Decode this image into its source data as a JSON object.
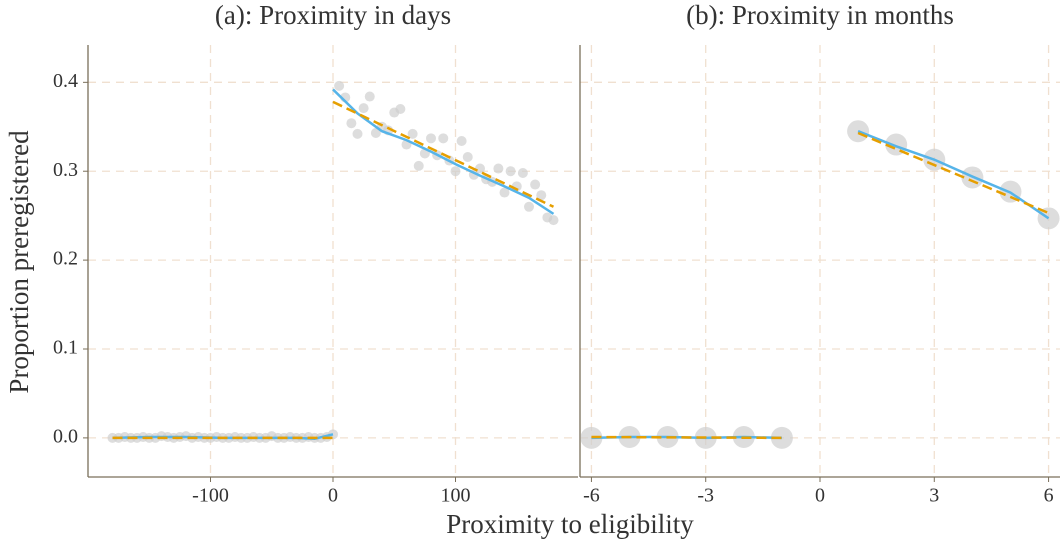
{
  "labels": {
    "xlabel": "Proximity to eligibility",
    "ylabel": "Proportion preregistered"
  },
  "chart_data": [
    {
      "type": "scatter",
      "title": "(a): Proximity in days",
      "xlim": [
        -200,
        200
      ],
      "xticks": [
        -100,
        0,
        100
      ],
      "ylim": [
        -0.044,
        0.442
      ],
      "yticks": [
        {
          "value": 0,
          "label": "0.0"
        },
        0.1,
        0.2,
        0.3,
        0.4
      ],
      "show_ytick_labels": true,
      "grid": true,
      "series": [
        {
          "type": "scatter",
          "color": "#cfcfcf",
          "size": 5,
          "x": [
            -180,
            -175,
            -170,
            -165,
            -160,
            -155,
            -150,
            -145,
            -140,
            -135,
            -130,
            -125,
            -120,
            -115,
            -110,
            -105,
            -100,
            -95,
            -90,
            -85,
            -80,
            -75,
            -70,
            -65,
            -60,
            -55,
            -50,
            -45,
            -40,
            -35,
            -30,
            -25,
            -20,
            -15,
            -10,
            -5,
            0,
            5,
            10,
            15,
            20,
            25,
            30,
            35,
            40,
            45,
            50,
            55,
            60,
            65,
            70,
            75,
            80,
            85,
            90,
            95,
            100,
            105,
            110,
            115,
            120,
            125,
            130,
            135,
            140,
            145,
            150,
            155,
            160,
            165,
            170,
            175,
            180
          ],
          "values": [
            0,
            0,
            0.001,
            0,
            0,
            0.001,
            0,
            0,
            0.002,
            0.001,
            0,
            0.001,
            0.002,
            0,
            0.001,
            0,
            0,
            0.001,
            0,
            0,
            0.001,
            0,
            0,
            0.001,
            0,
            0,
            0.002,
            0,
            0,
            0.001,
            0,
            0,
            0.001,
            0,
            0,
            0.001,
            0.004,
            0.396,
            0.383,
            0.354,
            0.342,
            0.371,
            0.384,
            0.343,
            0.35,
            0.346,
            0.366,
            0.37,
            0.33,
            0.342,
            0.306,
            0.32,
            0.337,
            0.318,
            0.337,
            0.312,
            0.3,
            0.334,
            0.316,
            0.296,
            0.303,
            0.291,
            0.288,
            0.303,
            0.276,
            0.3,
            0.283,
            0.298,
            0.26,
            0.285,
            0.273,
            0.248,
            0.245
          ]
        },
        {
          "type": "line",
          "color": "#56b4e9",
          "x": [
            -180,
            -150,
            -120,
            -90,
            -60,
            -30,
            -15,
            0
          ],
          "values": [
            0,
            0.001,
            0.001,
            0,
            0,
            0,
            -0.001,
            0.004
          ]
        },
        {
          "type": "line",
          "color": "#56b4e9",
          "x": [
            0,
            20,
            40,
            60,
            80,
            100,
            120,
            140,
            160,
            180
          ],
          "values": [
            0.392,
            0.365,
            0.345,
            0.335,
            0.322,
            0.308,
            0.295,
            0.283,
            0.27,
            0.252
          ]
        },
        {
          "type": "dashed",
          "color": "#e69f00",
          "x": [
            -180,
            0
          ],
          "values": [
            0,
            0
          ]
        },
        {
          "type": "dashed",
          "color": "#e69f00",
          "x": [
            0,
            180
          ],
          "values": [
            0.378,
            0.26
          ]
        }
      ]
    },
    {
      "type": "scatter",
      "title": "(b): Proximity in months",
      "xlim": [
        -6.3,
        6.3
      ],
      "xticks": [
        -6,
        -3,
        0,
        3,
        6
      ],
      "ylim": [
        -0.044,
        0.442
      ],
      "yticks": [
        0,
        0.1,
        0.2,
        0.3,
        0.4
      ],
      "show_ytick_labels": false,
      "grid": true,
      "series": [
        {
          "type": "scatter",
          "color": "#cfcfcf",
          "size": 11,
          "x": [
            -6,
            -5,
            -4,
            -3,
            -2,
            -1,
            1,
            2,
            3,
            4,
            5,
            6
          ],
          "values": [
            0,
            0.001,
            0.001,
            0,
            0.001,
            0,
            0.345,
            0.33,
            0.313,
            0.293,
            0.277,
            0.247
          ]
        },
        {
          "type": "line",
          "color": "#56b4e9",
          "x": [
            -6,
            -5,
            -4,
            -3,
            -2,
            -1
          ],
          "values": [
            0,
            0.001,
            0.001,
            0,
            0.001,
            0
          ]
        },
        {
          "type": "line",
          "color": "#56b4e9",
          "x": [
            1,
            2,
            3,
            4,
            5,
            6
          ],
          "values": [
            0.345,
            0.328,
            0.313,
            0.294,
            0.276,
            0.247
          ]
        },
        {
          "type": "dashed",
          "color": "#e69f00",
          "x": [
            -6,
            -1
          ],
          "values": [
            0.001,
            0
          ]
        },
        {
          "type": "dashed",
          "color": "#e69f00",
          "x": [
            1,
            6
          ],
          "values": [
            0.343,
            0.253
          ]
        }
      ]
    }
  ]
}
